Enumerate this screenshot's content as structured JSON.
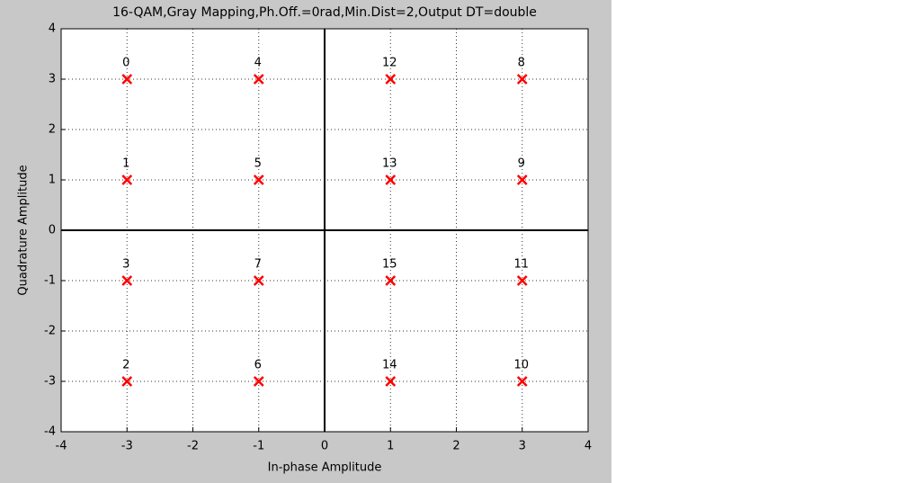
{
  "chart_data": {
    "type": "scatter",
    "title": "16-QAM,Gray Mapping,Ph.Off.=0rad,Min.Dist=2,Output DT=double",
    "xlabel": "In-phase Amplitude",
    "ylabel": "Quadrature Amplitude",
    "x": [
      -3,
      -3,
      -3,
      -3,
      -1,
      -1,
      -1,
      -1,
      3,
      3,
      3,
      3,
      1,
      1,
      1,
      1
    ],
    "y": [
      3,
      1,
      -3,
      -1,
      3,
      1,
      -3,
      -1,
      3,
      1,
      -3,
      -1,
      3,
      1,
      -3,
      -1
    ],
    "point_labels": [
      "0",
      "1",
      "2",
      "3",
      "4",
      "5",
      "6",
      "7",
      "8",
      "9",
      "10",
      "11",
      "12",
      "13",
      "14",
      "15"
    ],
    "color": "#ff0000",
    "xlim": [
      -4,
      4
    ],
    "ylim": [
      -4,
      4
    ],
    "xticks": [
      -4,
      -3,
      -2,
      -1,
      0,
      1,
      2,
      3,
      4
    ],
    "yticks": [
      -4,
      -3,
      -2,
      -1,
      0,
      1,
      2,
      3,
      4
    ],
    "grid": true,
    "zero_lines": true
  }
}
